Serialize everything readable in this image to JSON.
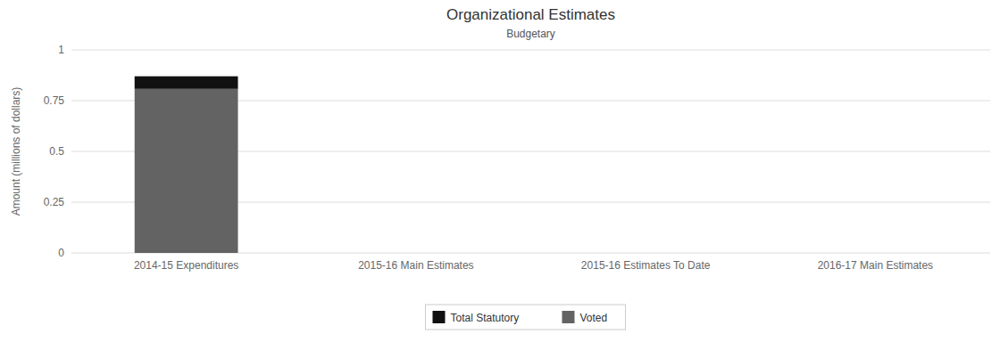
{
  "chart_data": {
    "type": "bar",
    "stacked": true,
    "title": "Organizational Estimates",
    "subtitle": "Budgetary",
    "y_label": "Amount (millions of dollars)",
    "categories": [
      "2014-15 Expenditures",
      "2015-16 Main Estimates",
      "2015-16 Estimates To Date",
      "2016-17 Main Estimates"
    ],
    "series": [
      {
        "name": "Total Statutory",
        "color": "#111111",
        "values": [
          0.062,
          0,
          0,
          0
        ]
      },
      {
        "name": "Voted",
        "color": "#636363",
        "values": [
          0.808,
          0,
          0,
          0
        ]
      }
    ],
    "ylim": [
      0,
      1
    ],
    "yticks": [
      0,
      0.25,
      0.5,
      0.75,
      1
    ],
    "grid": true,
    "legend": "bottom"
  }
}
